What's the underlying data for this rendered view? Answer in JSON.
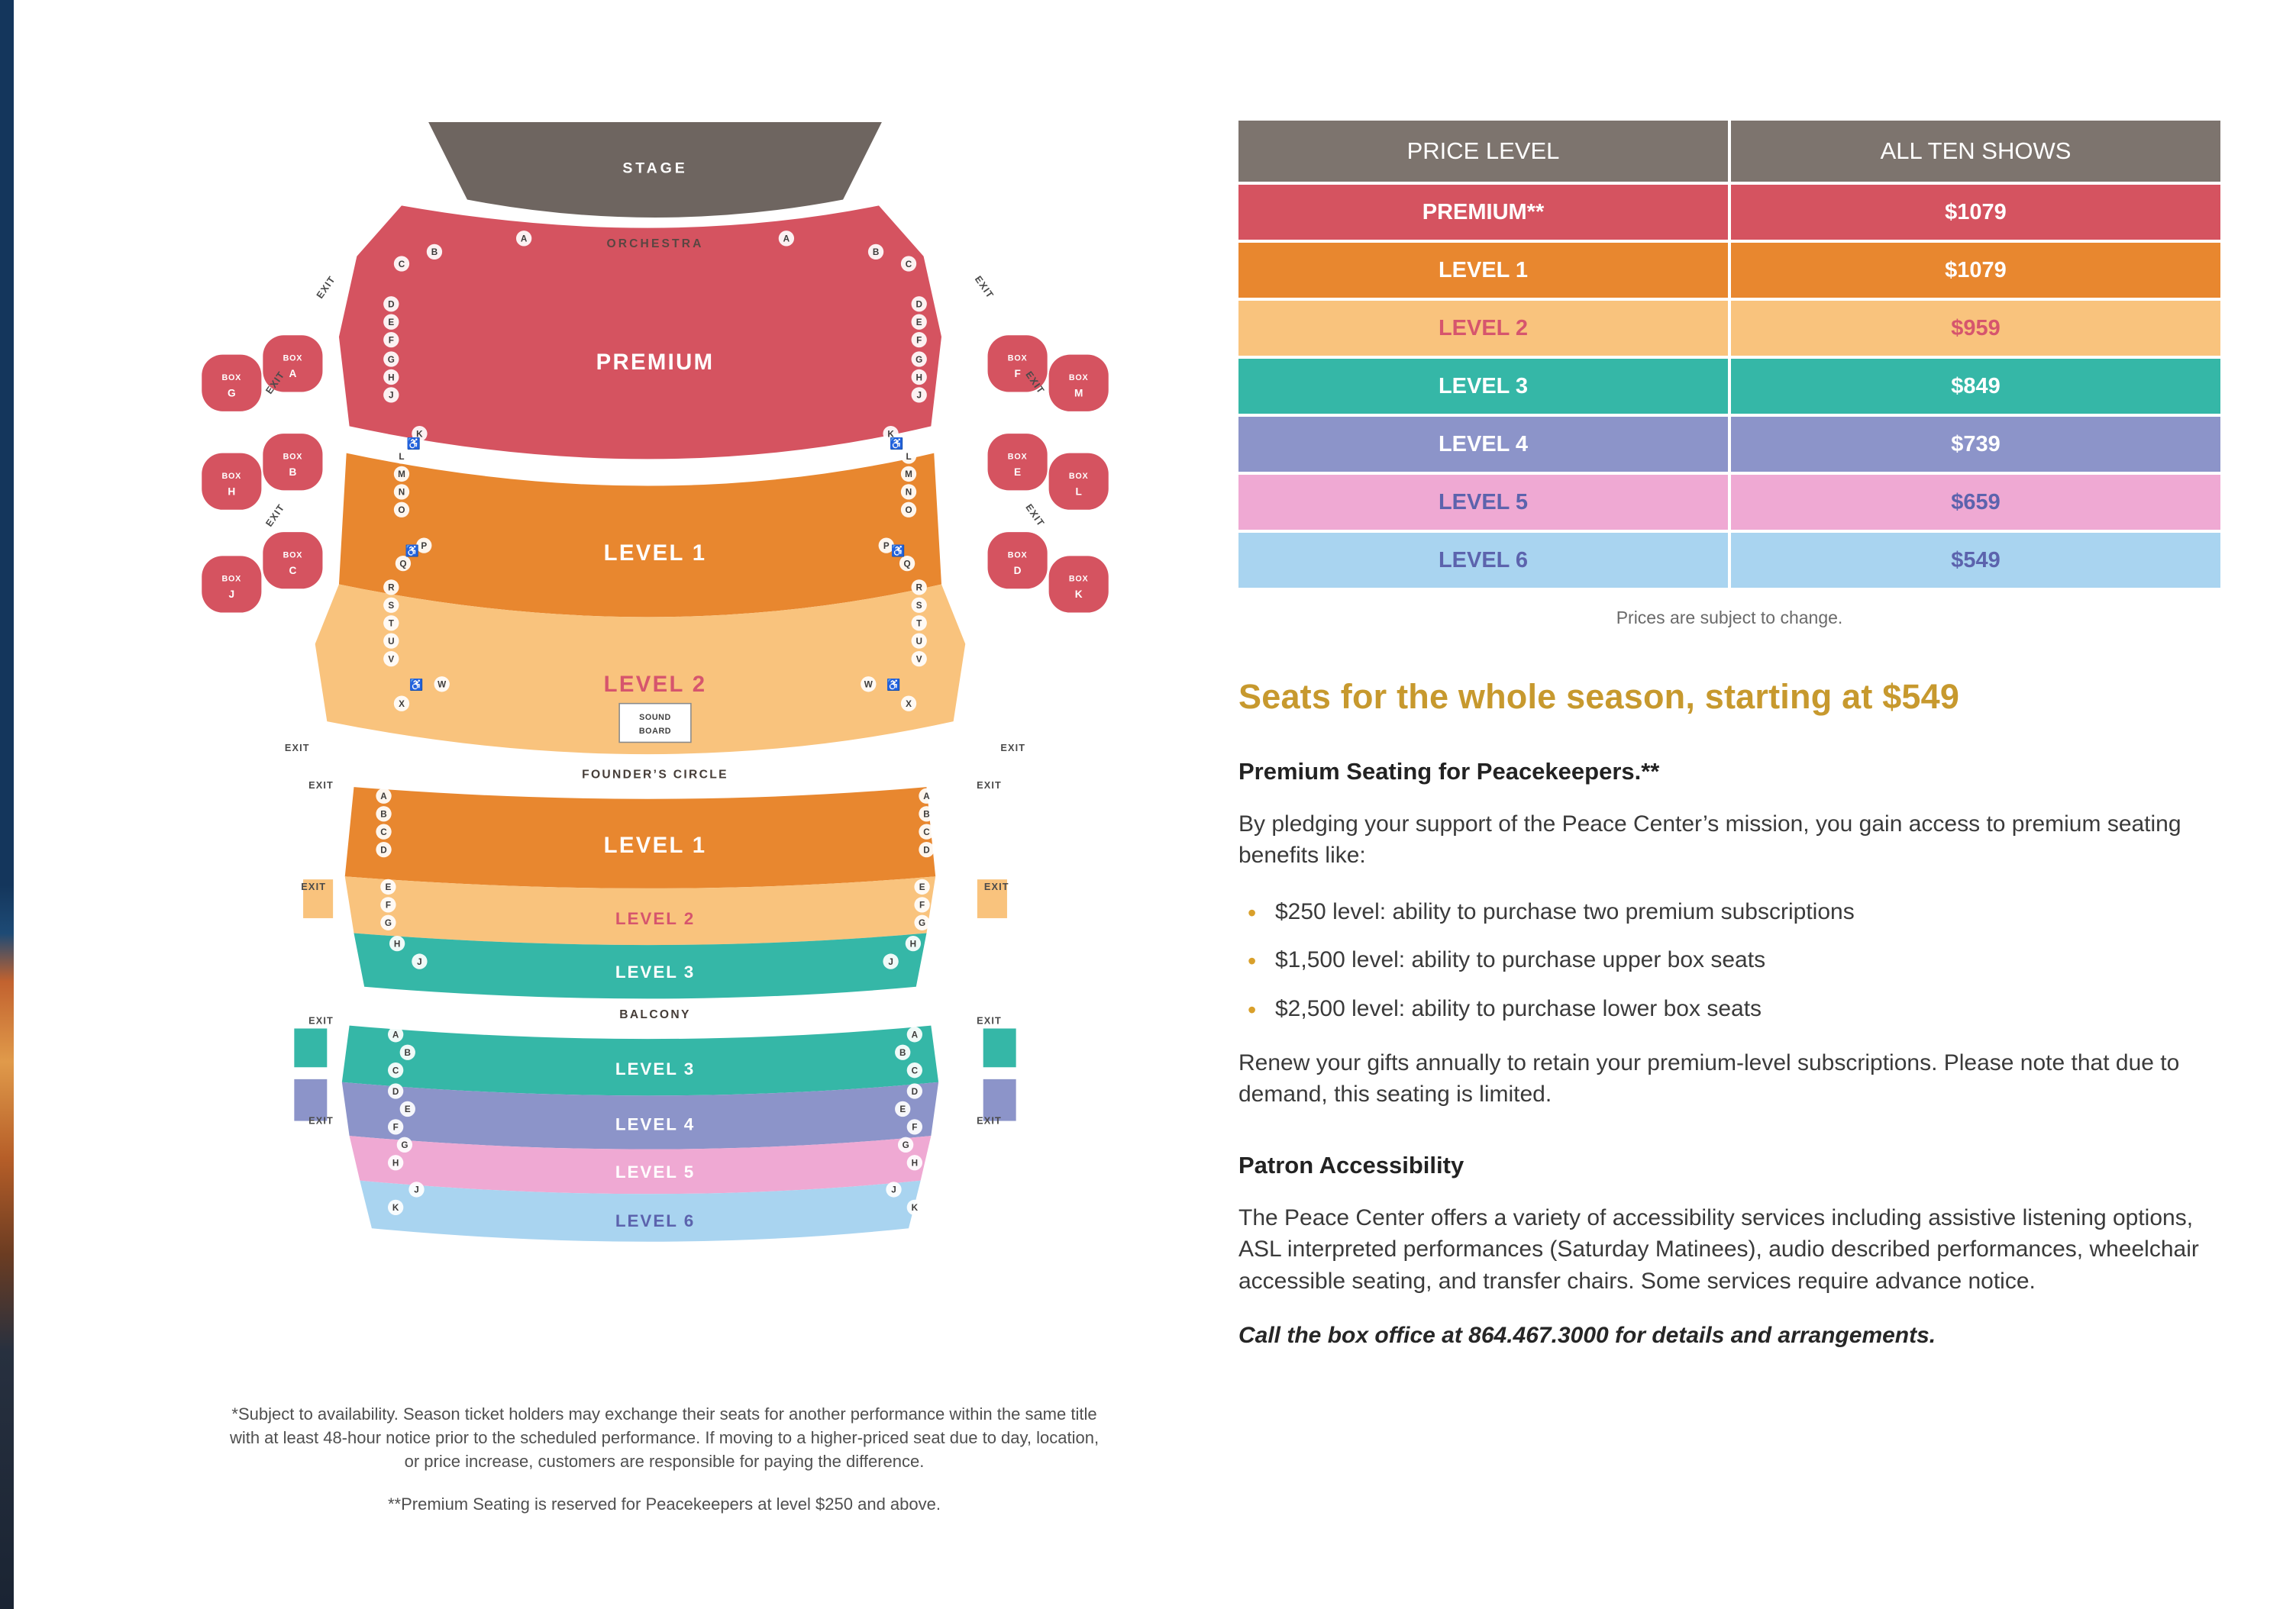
{
  "palette": {
    "premium_red": "#D55360",
    "level1_orange": "#E8872F",
    "level2_peach": "#F9C37D",
    "level3_teal": "#35B7A7",
    "level4_periwinkle": "#8C94C9",
    "level5_pink": "#EFA9D3",
    "level6_blue": "#A9D4F0",
    "header_gray": "#7D746E",
    "stage_gray": "#6E6560",
    "gold": "#C7992E",
    "pink_text": "#D6556D",
    "purple_text": "#5C63AD"
  },
  "icons": {
    "wheelchair": "♿"
  },
  "seatmap": {
    "stage": "STAGE",
    "orchestra": "ORCHESTRA",
    "premium": "PREMIUM",
    "level1": "LEVEL 1",
    "level2": "LEVEL 2",
    "sound_board": [
      "SOUND",
      "BOARD"
    ],
    "founders_circle": "FOUNDER’S CIRCLE",
    "fc_level1": "LEVEL 1",
    "fc_level2": "LEVEL 2",
    "fc_level3": "LEVEL 3",
    "balcony": "BALCONY",
    "b_level3": "LEVEL 3",
    "b_level4": "LEVEL 4",
    "b_level5": "LEVEL 5",
    "b_level6": "LEVEL 6",
    "exit": "EXIT",
    "rows": {
      "orchestra_arc": [
        "A",
        "B",
        "C"
      ],
      "premium_side": [
        "D",
        "E",
        "F",
        "G",
        "H",
        "J",
        "K"
      ],
      "level1_side": [
        "L",
        "M",
        "N",
        "O",
        "P",
        "Q"
      ],
      "level2_side": [
        "R",
        "S",
        "T",
        "U",
        "V",
        "W",
        "X"
      ],
      "founders_l1": [
        "A",
        "B",
        "C",
        "D"
      ],
      "founders_l2": [
        "E",
        "F",
        "G"
      ],
      "founders_l3": [
        "H",
        "J"
      ],
      "balcony_l3": [
        "A",
        "B",
        "C"
      ],
      "balcony_l4": [
        "D",
        "E",
        "F"
      ],
      "balcony_l5": [
        "G",
        "H"
      ],
      "balcony_l6": [
        "J",
        "K"
      ]
    },
    "boxes": [
      "BOX A",
      "BOX G",
      "BOX B",
      "BOX H",
      "BOX C",
      "BOX J",
      "BOX F",
      "BOX M",
      "BOX E",
      "BOX L",
      "BOX D",
      "BOX K"
    ]
  },
  "price_table": {
    "headers": [
      "PRICE LEVEL",
      "ALL TEN SHOWS"
    ],
    "rows": [
      {
        "label": "PREMIUM**",
        "price": "$1079",
        "bg": "#D55360",
        "fg": "#FFFFFF"
      },
      {
        "label": "LEVEL 1",
        "price": "$1079",
        "bg": "#E8872F",
        "fg": "#FFFFFF"
      },
      {
        "label": "LEVEL 2",
        "price": "$959",
        "bg": "#F9C37D",
        "fg": "#D6556D"
      },
      {
        "label": "LEVEL 3",
        "price": "$849",
        "bg": "#35B7A7",
        "fg": "#FFFFFF"
      },
      {
        "label": "LEVEL 4",
        "price": "$739",
        "bg": "#8C94C9",
        "fg": "#FFFFFF"
      },
      {
        "label": "LEVEL 5",
        "price": "$659",
        "bg": "#EFA9D3",
        "fg": "#5C63AD"
      },
      {
        "label": "LEVEL 6",
        "price": "$549",
        "bg": "#A9D4F0",
        "fg": "#5C63AD"
      }
    ],
    "caption": "Prices are subject to change."
  },
  "content": {
    "headline": "Seats for the whole season, starting at $549",
    "premium_heading": "Premium Seating for Peacekeepers.**",
    "premium_intro": "By pledging your support of the Peace Center’s mission, you gain access to premium seating benefits like:",
    "benefits": [
      "$250 level: ability to purchase two premium subscriptions",
      "$1,500 level: ability to purchase upper box seats",
      "$2,500 level: ability to purchase lower box seats"
    ],
    "renew_note": "Renew your gifts annually to retain your premium-level subscriptions. Please note that due to demand, this seating is limited.",
    "accessibility_heading": "Patron Accessibility",
    "accessibility_body": "The Peace Center offers a variety of accessibility services including assistive listening options, ASL interpreted performances (Saturday Matinees), audio described performances, wheelchair accessible seating, and transfer chairs. Some services require advance notice.",
    "box_office_note": "Call the box office at 864.467.3000 for details and arrangements."
  },
  "footnotes": [
    "*Subject to availability. Season ticket holders may exchange their seats for another performance within the same title with at least 48-hour notice prior to the scheduled performance. If moving to a higher-priced seat due to day, location, or price increase, customers are responsible for paying the difference.",
    "**Premium Seating is reserved for Peacekeepers at level $250 and above."
  ]
}
